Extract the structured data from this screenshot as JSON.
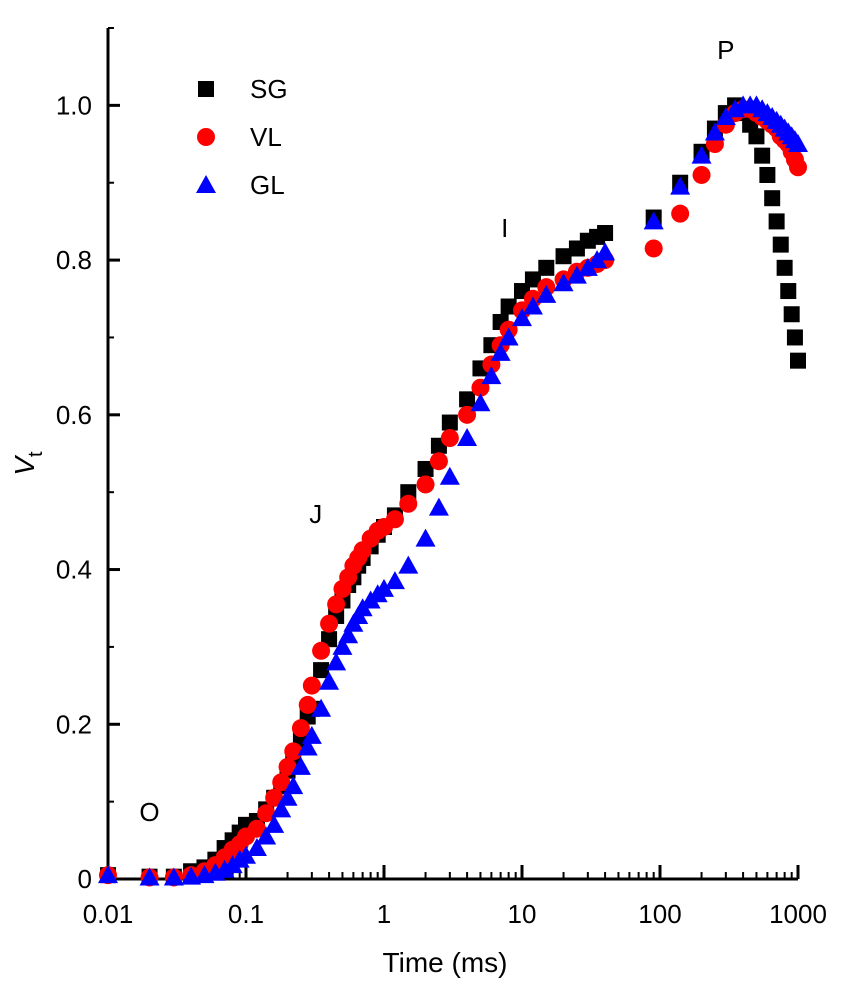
{
  "chart_data": {
    "type": "scatter",
    "xlabel": "Time (ms)",
    "ylabel_main": "V",
    "ylabel_sub": "t",
    "xscale": "log",
    "xlim": [
      0.01,
      1000
    ],
    "ylim": [
      0,
      1.1
    ],
    "x_ticks": [
      0.01,
      0.1,
      1,
      10,
      100,
      1000
    ],
    "x_tick_labels": [
      "0.01",
      "0.1",
      "1",
      "10",
      "100",
      "1000"
    ],
    "y_ticks": [
      0,
      0.2,
      0.4,
      0.6,
      0.8,
      1.0
    ],
    "y_tick_labels": [
      "0",
      "0.2",
      "0.4",
      "0.6",
      "0.8",
      "1.0"
    ],
    "grid": false,
    "legend_position": "top-left",
    "annotations": [
      {
        "text": "O",
        "x": 0.02,
        "y": 0.075
      },
      {
        "text": "J",
        "x": 0.32,
        "y": 0.46
      },
      {
        "text": "I",
        "x": 7.5,
        "y": 0.83
      },
      {
        "text": "P",
        "x": 300,
        "y": 1.06
      }
    ],
    "series": [
      {
        "name": "SG",
        "marker": "square",
        "color": "#000000",
        "x": [
          0.01,
          0.02,
          0.03,
          0.04,
          0.05,
          0.06,
          0.07,
          0.08,
          0.09,
          0.1,
          0.12,
          0.14,
          0.16,
          0.18,
          0.2,
          0.22,
          0.25,
          0.28,
          0.3,
          0.35,
          0.4,
          0.45,
          0.5,
          0.55,
          0.6,
          0.65,
          0.7,
          0.8,
          0.9,
          1.0,
          1.2,
          1.5,
          2,
          2.5,
          3,
          4,
          5,
          6,
          7,
          8,
          10,
          12,
          15,
          20,
          25,
          30,
          35,
          40,
          90,
          140,
          200,
          250,
          300,
          350,
          400,
          450,
          500,
          550,
          600,
          650,
          700,
          750,
          800,
          850,
          900,
          950,
          1000
        ],
        "y": [
          0.005,
          0.003,
          0.003,
          0.01,
          0.015,
          0.025,
          0.04,
          0.05,
          0.06,
          0.07,
          0.075,
          0.09,
          0.105,
          0.12,
          0.14,
          0.155,
          0.18,
          0.21,
          0.22,
          0.27,
          0.31,
          0.34,
          0.36,
          0.38,
          0.39,
          0.405,
          0.415,
          0.43,
          0.445,
          0.455,
          0.47,
          0.5,
          0.53,
          0.56,
          0.59,
          0.62,
          0.66,
          0.69,
          0.72,
          0.74,
          0.76,
          0.775,
          0.79,
          0.805,
          0.815,
          0.825,
          0.83,
          0.835,
          0.855,
          0.9,
          0.94,
          0.97,
          0.99,
          1.0,
          0.99,
          0.975,
          0.96,
          0.935,
          0.91,
          0.88,
          0.85,
          0.82,
          0.79,
          0.76,
          0.73,
          0.7,
          0.67
        ]
      },
      {
        "name": "VL",
        "marker": "circle",
        "color": "#ff0000",
        "x": [
          0.01,
          0.02,
          0.03,
          0.04,
          0.05,
          0.06,
          0.07,
          0.08,
          0.09,
          0.1,
          0.12,
          0.14,
          0.16,
          0.18,
          0.2,
          0.22,
          0.25,
          0.28,
          0.3,
          0.35,
          0.4,
          0.45,
          0.5,
          0.55,
          0.6,
          0.65,
          0.7,
          0.8,
          0.9,
          1.0,
          1.2,
          1.5,
          2,
          2.5,
          3,
          4,
          5,
          6,
          7,
          8,
          10,
          12,
          15,
          20,
          25,
          30,
          35,
          40,
          90,
          140,
          200,
          250,
          300,
          350,
          400,
          450,
          500,
          550,
          600,
          650,
          700,
          750,
          800,
          850,
          900,
          950,
          1000
        ],
        "y": [
          0.005,
          0.002,
          0.002,
          0.005,
          0.01,
          0.018,
          0.028,
          0.038,
          0.045,
          0.055,
          0.065,
          0.085,
          0.105,
          0.125,
          0.145,
          0.165,
          0.195,
          0.225,
          0.25,
          0.295,
          0.33,
          0.355,
          0.375,
          0.39,
          0.405,
          0.415,
          0.425,
          0.44,
          0.45,
          0.455,
          0.465,
          0.485,
          0.51,
          0.54,
          0.57,
          0.6,
          0.635,
          0.665,
          0.69,
          0.71,
          0.735,
          0.75,
          0.765,
          0.775,
          0.785,
          0.79,
          0.795,
          0.8,
          0.815,
          0.86,
          0.91,
          0.95,
          0.975,
          0.99,
          0.995,
          0.995,
          0.99,
          0.985,
          0.98,
          0.975,
          0.97,
          0.96,
          0.955,
          0.95,
          0.94,
          0.93,
          0.92
        ]
      },
      {
        "name": "GL",
        "marker": "triangle",
        "color": "#0000ff",
        "x": [
          0.01,
          0.02,
          0.03,
          0.04,
          0.05,
          0.06,
          0.07,
          0.08,
          0.09,
          0.1,
          0.12,
          0.14,
          0.16,
          0.18,
          0.2,
          0.22,
          0.25,
          0.28,
          0.3,
          0.35,
          0.4,
          0.45,
          0.5,
          0.55,
          0.6,
          0.65,
          0.7,
          0.8,
          0.9,
          1.0,
          1.2,
          1.5,
          2,
          2.5,
          3,
          4,
          5,
          6,
          7,
          8,
          10,
          12,
          15,
          20,
          25,
          30,
          35,
          40,
          90,
          140,
          200,
          250,
          300,
          350,
          400,
          450,
          500,
          550,
          600,
          650,
          700,
          750,
          800,
          850,
          900,
          950,
          1000
        ],
        "y": [
          0.005,
          0.002,
          0.002,
          0.003,
          0.005,
          0.008,
          0.012,
          0.018,
          0.025,
          0.03,
          0.04,
          0.055,
          0.07,
          0.09,
          0.105,
          0.12,
          0.145,
          0.17,
          0.185,
          0.22,
          0.255,
          0.28,
          0.3,
          0.315,
          0.33,
          0.34,
          0.35,
          0.36,
          0.368,
          0.375,
          0.385,
          0.405,
          0.44,
          0.48,
          0.52,
          0.57,
          0.615,
          0.65,
          0.68,
          0.7,
          0.725,
          0.74,
          0.755,
          0.77,
          0.78,
          0.79,
          0.8,
          0.81,
          0.85,
          0.895,
          0.935,
          0.965,
          0.985,
          0.995,
          1.0,
          1.0,
          1.0,
          0.995,
          0.99,
          0.985,
          0.98,
          0.975,
          0.97,
          0.965,
          0.96,
          0.955,
          0.95
        ]
      }
    ]
  }
}
